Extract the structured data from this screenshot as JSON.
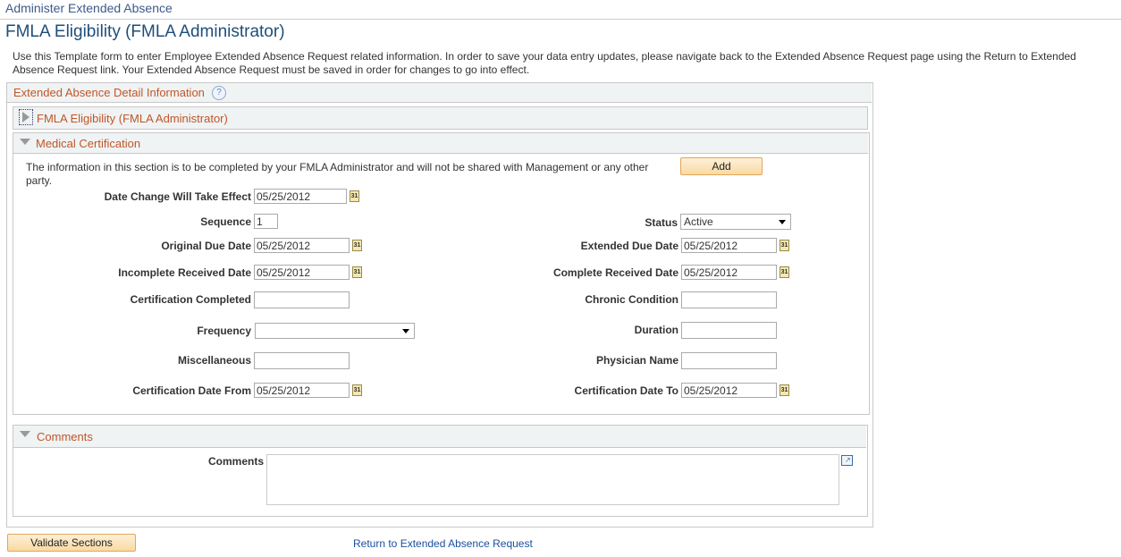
{
  "breadcrumb": "Administer Extended Absence",
  "page_title": "FMLA Eligibility (FMLA Administrator)",
  "intro": "Use this Template form to enter Employee Extended Absence Request related information. In order to save your data entry updates, please navigate back to the Extended Absence Request page using the Return to Extended Absence Request link.  Your Extended Absence Request must be saved in order for changes to go into effect.",
  "outer_section": {
    "title": "Extended Absence Detail Information",
    "help_icon": "question-circle-icon"
  },
  "eligibility_section": {
    "title": "FMLA Eligibility (FMLA Administrator)",
    "state": "collapsed"
  },
  "medical": {
    "title": "Medical Certification",
    "note": "The information in this section is to be completed by your FMLA Administrator and will not be shared with Management or any other party.",
    "add_label": "Add",
    "fields": {
      "date_change": {
        "label": "Date Change Will Take Effect",
        "value": "05/25/2012"
      },
      "sequence": {
        "label": "Sequence",
        "value": "1"
      },
      "status": {
        "label": "Status",
        "value": "Active"
      },
      "original_due": {
        "label": "Original Due Date",
        "value": "05/25/2012"
      },
      "extended_due": {
        "label": "Extended Due Date",
        "value": "05/25/2012"
      },
      "incomplete_received": {
        "label": "Incomplete Received Date",
        "value": "05/25/2012"
      },
      "complete_received": {
        "label": "Complete Received Date",
        "value": "05/25/2012"
      },
      "cert_completed": {
        "label": "Certification Completed",
        "value": ""
      },
      "chronic": {
        "label": "Chronic Condition",
        "value": ""
      },
      "frequency": {
        "label": "Frequency",
        "value": ""
      },
      "duration": {
        "label": "Duration",
        "value": ""
      },
      "misc": {
        "label": "Miscellaneous",
        "value": ""
      },
      "physician": {
        "label": "Physician Name",
        "value": ""
      },
      "cert_from": {
        "label": "Certification Date From",
        "value": "05/25/2012"
      },
      "cert_to": {
        "label": "Certification Date To",
        "value": "05/25/2012"
      }
    },
    "calendar_icon_text": "31"
  },
  "comments": {
    "title": "Comments",
    "label": "Comments",
    "value": ""
  },
  "footer": {
    "validate_label": "Validate Sections",
    "return_link": "Return to Extended Absence Request"
  }
}
